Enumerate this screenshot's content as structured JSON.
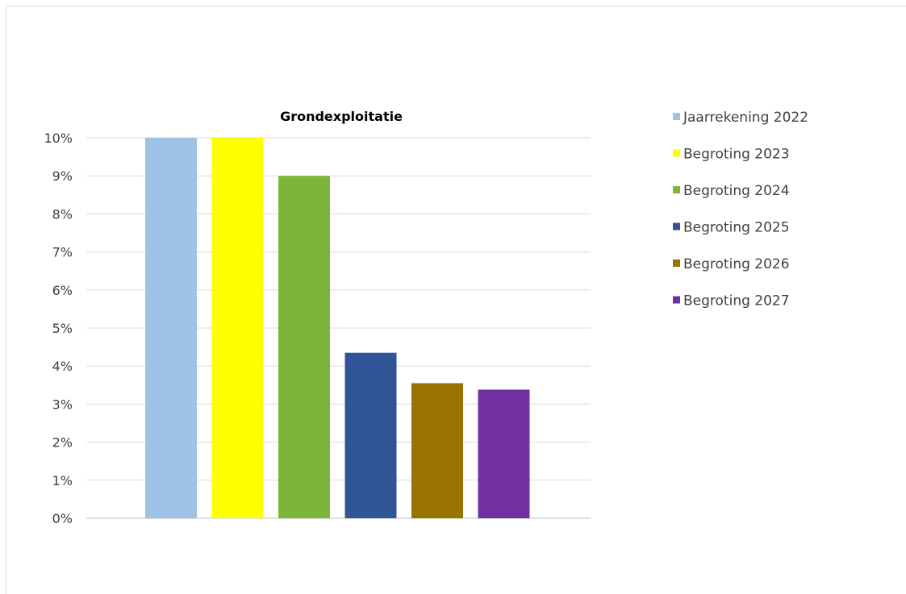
{
  "chart_data": {
    "type": "bar",
    "title": "Grondexploitatie",
    "xlabel": "",
    "ylabel": "",
    "ylim": [
      0,
      10
    ],
    "y_ticks": [
      "0%",
      "1%",
      "2%",
      "3%",
      "4%",
      "5%",
      "6%",
      "7%",
      "8%",
      "9%",
      "10%"
    ],
    "grid": true,
    "legend_position": "right",
    "series": [
      {
        "name": "Jaarrekening 2022",
        "value": 10.0,
        "color": "#9dc3e6"
      },
      {
        "name": "Begroting 2023",
        "value": 10.0,
        "color": "#ffff00"
      },
      {
        "name": "Begroting 2024",
        "value": 9.0,
        "color": "#7cb53a"
      },
      {
        "name": "Begroting 2025",
        "value": 4.35,
        "color": "#2f5597"
      },
      {
        "name": "Begroting 2026",
        "value": 3.55,
        "color": "#997300"
      },
      {
        "name": "Begroting 2027",
        "value": 3.38,
        "color": "#7030a0"
      }
    ]
  }
}
